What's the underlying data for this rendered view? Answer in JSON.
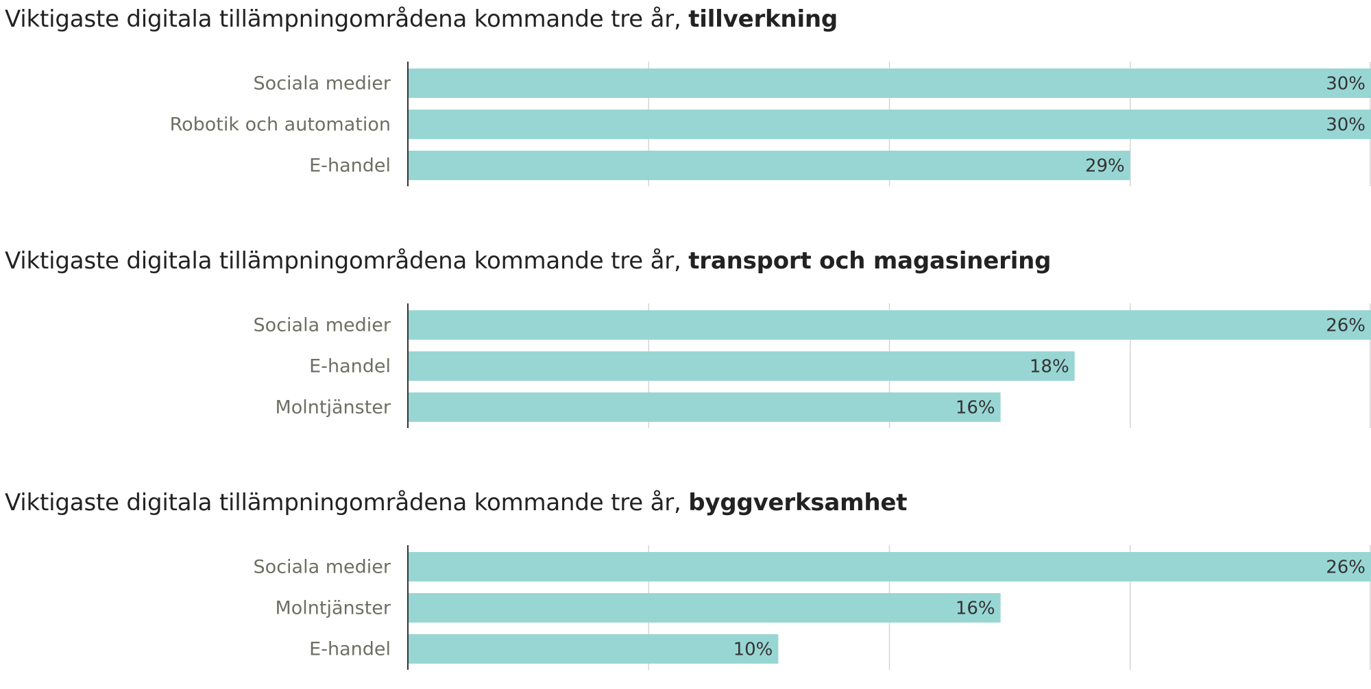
{
  "chart_data": [
    {
      "type": "bar",
      "orientation": "horizontal",
      "title": "Viktigaste digitala tillämpningområdena kommande tre år,",
      "title_emphasis": "tillverkning",
      "categories": [
        "Sociala medier",
        "Robotik och automation",
        "E-handel"
      ],
      "values": [
        30,
        30,
        29
      ],
      "value_labels": [
        "30%",
        "30%",
        "29%"
      ],
      "xlim": [
        26,
        30
      ],
      "grid": true,
      "bar_color": "#98d6d4"
    },
    {
      "type": "bar",
      "orientation": "horizontal",
      "title": "Viktigaste digitala tillämpningområdena kommande tre år,",
      "title_emphasis": "transport och magasinering",
      "categories": [
        "Sociala medier",
        "E-handel",
        "Molntjänster"
      ],
      "values": [
        26,
        18,
        16
      ],
      "value_labels": [
        "26%",
        "18%",
        "16%"
      ],
      "xlim": [
        0,
        26
      ],
      "grid": true,
      "bar_color": "#98d6d4"
    },
    {
      "type": "bar",
      "orientation": "horizontal",
      "title": "Viktigaste digitala tillämpningområdena kommande tre år,",
      "title_emphasis": "byggverksamhet",
      "categories": [
        "Sociala medier",
        "Molntjänster",
        "E-handel"
      ],
      "values": [
        26,
        16,
        10
      ],
      "value_labels": [
        "26%",
        "16%",
        "10%"
      ],
      "xlim": [
        0,
        26
      ],
      "grid": true,
      "bar_color": "#98d6d4"
    }
  ]
}
